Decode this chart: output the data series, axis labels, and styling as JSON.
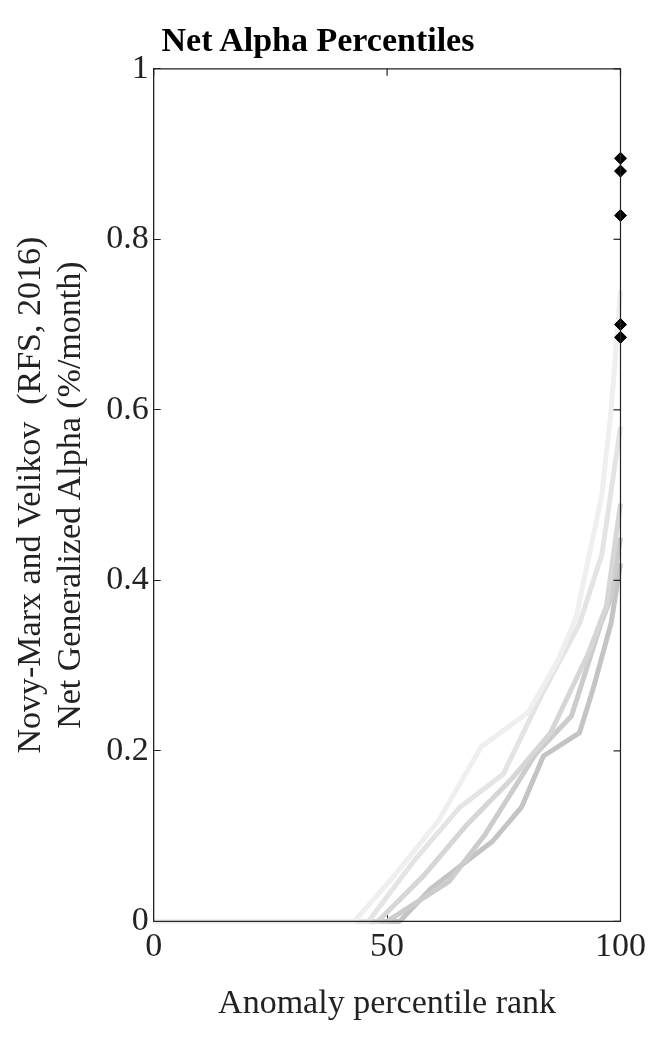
{
  "chart_data": {
    "type": "line",
    "title": "Net Alpha Percentiles",
    "xlabel": "Anomaly percentile rank",
    "ylabel": "Novy-Marx and Velikov  (RFS, 2016)\nNet Generalized Alpha (%/month)",
    "xlim": [
      0,
      100
    ],
    "ylim": [
      0,
      1
    ],
    "xticks": [
      0,
      50,
      100
    ],
    "yticks": [
      0,
      0.2,
      0.4,
      0.6,
      0.8,
      1
    ],
    "grid": false,
    "legend": false,
    "marker": "none",
    "line_style": "solid",
    "series": [
      {
        "color": "#efefef",
        "x": [
          0,
          43,
          51.6,
          61,
          70.2,
          80.2,
          86.5,
          90.5,
          96,
          98,
          100
        ],
        "values": [
          0,
          0,
          0.054,
          0.118,
          0.205,
          0.245,
          0.305,
          0.357,
          0.5,
          0.6,
          0.74
        ]
      },
      {
        "color": "#e4e4e4",
        "x": [
          0,
          46,
          55.6,
          65.6,
          74.9,
          83.5,
          91.2,
          96,
          100
        ],
        "values": [
          0,
          0,
          0.07,
          0.134,
          0.173,
          0.27,
          0.349,
          0.43,
          0.58
        ]
      },
      {
        "color": "#d6d6d6",
        "x": [
          0,
          48,
          57.9,
          67.2,
          76.5,
          85,
          93,
          97,
          100
        ],
        "values": [
          0,
          0,
          0.054,
          0.114,
          0.166,
          0.221,
          0.313,
          0.37,
          0.49
        ]
      },
      {
        "color": "#cccccc",
        "x": [
          0,
          50,
          63.3,
          71,
          81.9,
          89.5,
          95.8,
          98,
          100
        ],
        "values": [
          0,
          0,
          0.047,
          0.102,
          0.197,
          0.241,
          0.349,
          0.38,
          0.45
        ]
      },
      {
        "color": "#c4c4c4",
        "x": [
          0,
          52.7,
          59.3,
          72.6,
          78.8,
          83.5,
          91.2,
          94.2,
          98,
          100
        ],
        "values": [
          0,
          0,
          0.038,
          0.094,
          0.134,
          0.194,
          0.221,
          0.274,
          0.35,
          0.42
        ]
      },
      {
        "type": "scatter",
        "color": "#000000",
        "marker": "diamond",
        "x": [
          100,
          100,
          100,
          100,
          100
        ],
        "values": [
          0.895,
          0.88,
          0.828,
          0.7,
          0.685
        ]
      }
    ]
  }
}
